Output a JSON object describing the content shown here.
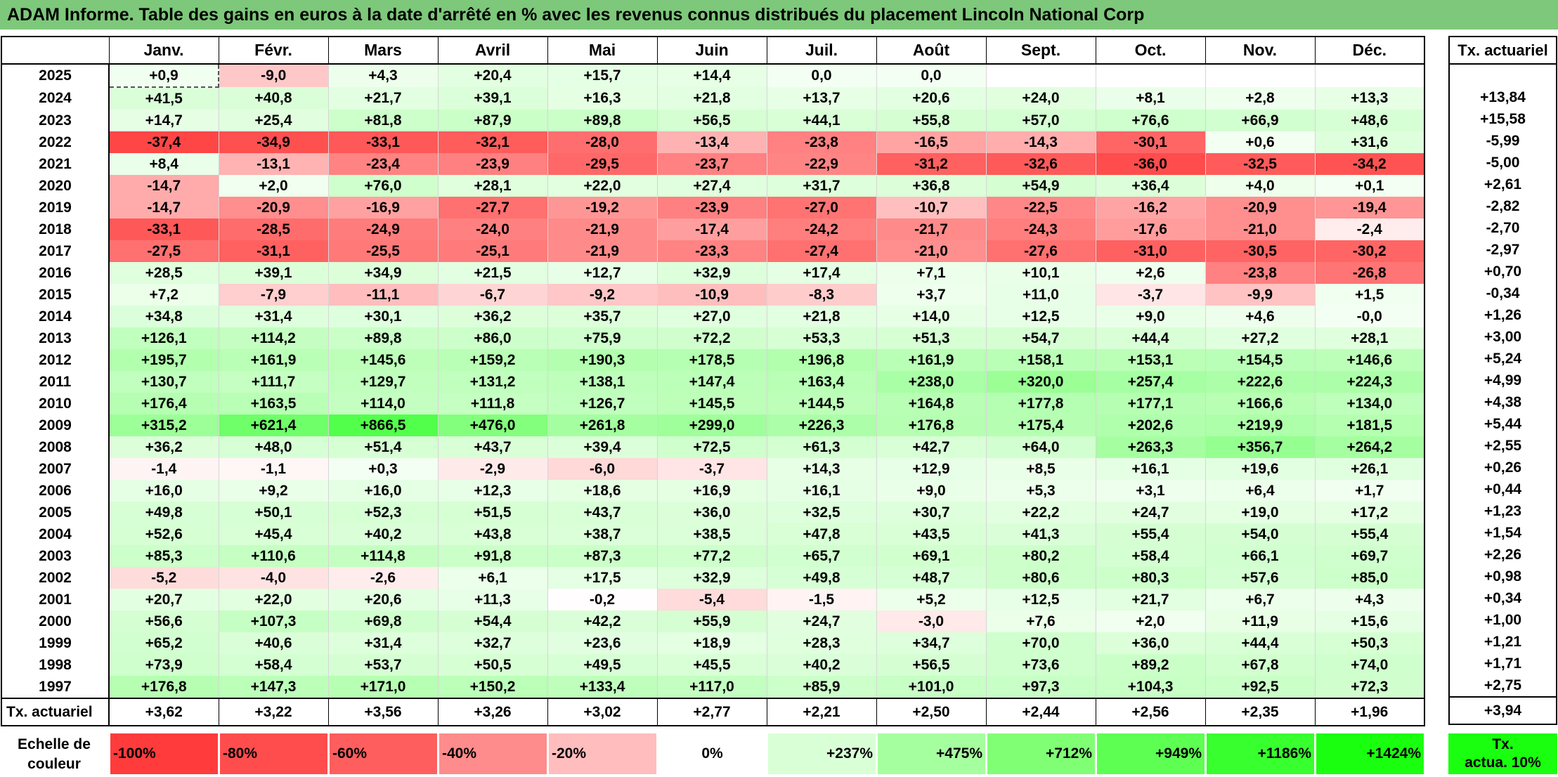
{
  "title": "ADAM Informe. Table des gains en euros à la date d'arrêté en % avec les revenus connus distribués du placement Lincoln National Corp",
  "chart_data": {
    "type": "table",
    "title": "ADAM Informe. Table des gains en euros à la date d'arrêté en % avec les revenus connus distribués du placement Lincoln National Corp",
    "months": [
      "Janv.",
      "Févr.",
      "Mars",
      "Avril",
      "Mai",
      "Juin",
      "Juil.",
      "Août",
      "Sept.",
      "Oct.",
      "Nov.",
      "Déc."
    ],
    "side_header": "Tx. actuariel",
    "rows": [
      {
        "year": "2025",
        "values": [
          "+0,9",
          "-9,0",
          "+4,3",
          "+20,4",
          "+15,7",
          "+14,4",
          "0,0",
          "0,0",
          "",
          "",
          "",
          ""
        ],
        "rate": ""
      },
      {
        "year": "2024",
        "values": [
          "+41,5",
          "+40,8",
          "+21,7",
          "+39,1",
          "+16,3",
          "+21,8",
          "+13,7",
          "+20,6",
          "+24,0",
          "+8,1",
          "+2,8",
          "+13,3"
        ],
        "rate": "+13,84"
      },
      {
        "year": "2023",
        "values": [
          "+14,7",
          "+25,4",
          "+81,8",
          "+87,9",
          "+89,8",
          "+56,5",
          "+44,1",
          "+55,8",
          "+57,0",
          "+76,6",
          "+66,9",
          "+48,6"
        ],
        "rate": "+15,58"
      },
      {
        "year": "2022",
        "values": [
          "-37,4",
          "-34,9",
          "-33,1",
          "-32,1",
          "-28,0",
          "-13,4",
          "-23,8",
          "-16,5",
          "-14,3",
          "-30,1",
          "+0,6",
          "+31,6"
        ],
        "rate": "-5,99"
      },
      {
        "year": "2021",
        "values": [
          "+8,4",
          "-13,1",
          "-23,4",
          "-23,9",
          "-29,5",
          "-23,7",
          "-22,9",
          "-31,2",
          "-32,6",
          "-36,0",
          "-32,5",
          "-34,2"
        ],
        "rate": "-5,00"
      },
      {
        "year": "2020",
        "values": [
          "-14,7",
          "+2,0",
          "+76,0",
          "+28,1",
          "+22,0",
          "+27,4",
          "+31,7",
          "+36,8",
          "+54,9",
          "+36,4",
          "+4,0",
          "+0,1"
        ],
        "rate": "+2,61"
      },
      {
        "year": "2019",
        "values": [
          "-14,7",
          "-20,9",
          "-16,9",
          "-27,7",
          "-19,2",
          "-23,9",
          "-27,0",
          "-10,7",
          "-22,5",
          "-16,2",
          "-20,9",
          "-19,4"
        ],
        "rate": "-2,82"
      },
      {
        "year": "2018",
        "values": [
          "-33,1",
          "-28,5",
          "-24,9",
          "-24,0",
          "-21,9",
          "-17,4",
          "-24,2",
          "-21,7",
          "-24,3",
          "-17,6",
          "-21,0",
          "-2,4"
        ],
        "rate": "-2,70"
      },
      {
        "year": "2017",
        "values": [
          "-27,5",
          "-31,1",
          "-25,5",
          "-25,1",
          "-21,9",
          "-23,3",
          "-27,4",
          "-21,0",
          "-27,6",
          "-31,0",
          "-30,5",
          "-30,2"
        ],
        "rate": "-2,97"
      },
      {
        "year": "2016",
        "values": [
          "+28,5",
          "+39,1",
          "+34,9",
          "+21,5",
          "+12,7",
          "+32,9",
          "+17,4",
          "+7,1",
          "+10,1",
          "+2,6",
          "-23,8",
          "-26,8"
        ],
        "rate": "+0,70"
      },
      {
        "year": "2015",
        "values": [
          "+7,2",
          "-7,9",
          "-11,1",
          "-6,7",
          "-9,2",
          "-10,9",
          "-8,3",
          "+3,7",
          "+11,0",
          "-3,7",
          "-9,9",
          "+1,5"
        ],
        "rate": "-0,34"
      },
      {
        "year": "2014",
        "values": [
          "+34,8",
          "+31,4",
          "+30,1",
          "+36,2",
          "+35,7",
          "+27,0",
          "+21,8",
          "+14,0",
          "+12,5",
          "+9,0",
          "+4,6",
          "-0,0"
        ],
        "rate": "+1,26"
      },
      {
        "year": "2013",
        "values": [
          "+126,1",
          "+114,2",
          "+89,8",
          "+86,0",
          "+75,9",
          "+72,2",
          "+53,3",
          "+51,3",
          "+54,7",
          "+44,4",
          "+27,2",
          "+28,1"
        ],
        "rate": "+3,00"
      },
      {
        "year": "2012",
        "values": [
          "+195,7",
          "+161,9",
          "+145,6",
          "+159,2",
          "+190,3",
          "+178,5",
          "+196,8",
          "+161,9",
          "+158,1",
          "+153,1",
          "+154,5",
          "+146,6"
        ],
        "rate": "+5,24"
      },
      {
        "year": "2011",
        "values": [
          "+130,7",
          "+111,7",
          "+129,7",
          "+131,2",
          "+138,1",
          "+147,4",
          "+163,4",
          "+238,0",
          "+320,0",
          "+257,4",
          "+222,6",
          "+224,3"
        ],
        "rate": "+4,99"
      },
      {
        "year": "2010",
        "values": [
          "+176,4",
          "+163,5",
          "+114,0",
          "+111,8",
          "+126,7",
          "+145,5",
          "+144,5",
          "+164,8",
          "+177,8",
          "+177,1",
          "+166,6",
          "+134,0"
        ],
        "rate": "+4,38"
      },
      {
        "year": "2009",
        "values": [
          "+315,2",
          "+621,4",
          "+866,5",
          "+476,0",
          "+261,8",
          "+299,0",
          "+226,3",
          "+176,8",
          "+175,4",
          "+202,6",
          "+219,9",
          "+181,5"
        ],
        "rate": "+5,44"
      },
      {
        "year": "2008",
        "values": [
          "+36,2",
          "+48,0",
          "+51,4",
          "+43,7",
          "+39,4",
          "+72,5",
          "+61,3",
          "+42,7",
          "+64,0",
          "+263,3",
          "+356,7",
          "+264,2"
        ],
        "rate": "+2,55"
      },
      {
        "year": "2007",
        "values": [
          "-1,4",
          "-1,1",
          "+0,3",
          "-2,9",
          "-6,0",
          "-3,7",
          "+14,3",
          "+12,9",
          "+8,5",
          "+16,1",
          "+19,6",
          "+26,1"
        ],
        "rate": "+0,26"
      },
      {
        "year": "2006",
        "values": [
          "+16,0",
          "+9,2",
          "+16,0",
          "+12,3",
          "+18,6",
          "+16,9",
          "+16,1",
          "+9,0",
          "+5,3",
          "+3,1",
          "+6,4",
          "+1,7"
        ],
        "rate": "+0,44"
      },
      {
        "year": "2005",
        "values": [
          "+49,8",
          "+50,1",
          "+52,3",
          "+51,5",
          "+43,7",
          "+36,0",
          "+32,5",
          "+30,7",
          "+22,2",
          "+24,7",
          "+19,0",
          "+17,2"
        ],
        "rate": "+1,23"
      },
      {
        "year": "2004",
        "values": [
          "+52,6",
          "+45,4",
          "+40,2",
          "+43,8",
          "+38,7",
          "+38,5",
          "+47,8",
          "+43,5",
          "+41,3",
          "+55,4",
          "+54,0",
          "+55,4"
        ],
        "rate": "+1,54"
      },
      {
        "year": "2003",
        "values": [
          "+85,3",
          "+110,6",
          "+114,8",
          "+91,8",
          "+87,3",
          "+77,2",
          "+65,7",
          "+69,1",
          "+80,2",
          "+58,4",
          "+66,1",
          "+69,7"
        ],
        "rate": "+2,26"
      },
      {
        "year": "2002",
        "values": [
          "-5,2",
          "-4,0",
          "-2,6",
          "+6,1",
          "+17,5",
          "+32,9",
          "+49,8",
          "+48,7",
          "+80,6",
          "+80,3",
          "+57,6",
          "+85,0"
        ],
        "rate": "+0,98"
      },
      {
        "year": "2001",
        "values": [
          "+20,7",
          "+22,0",
          "+20,6",
          "+11,3",
          "-0,2",
          "-5,4",
          "-1,5",
          "+5,2",
          "+12,5",
          "+21,7",
          "+6,7",
          "+4,3"
        ],
        "rate": "+0,34"
      },
      {
        "year": "2000",
        "values": [
          "+56,6",
          "+107,3",
          "+69,8",
          "+54,4",
          "+42,2",
          "+55,9",
          "+24,7",
          "-3,0",
          "+7,6",
          "+2,0",
          "+11,9",
          "+15,6"
        ],
        "rate": "+1,00"
      },
      {
        "year": "1999",
        "values": [
          "+65,2",
          "+40,6",
          "+31,4",
          "+32,7",
          "+23,6",
          "+18,9",
          "+28,3",
          "+34,7",
          "+70,0",
          "+36,0",
          "+44,4",
          "+50,3"
        ],
        "rate": "+1,21"
      },
      {
        "year": "1998",
        "values": [
          "+73,9",
          "+58,4",
          "+53,7",
          "+50,5",
          "+49,5",
          "+45,5",
          "+40,2",
          "+56,5",
          "+73,6",
          "+89,2",
          "+67,8",
          "+74,0"
        ],
        "rate": "+1,71"
      },
      {
        "year": "1997",
        "values": [
          "+176,8",
          "+147,3",
          "+171,0",
          "+150,2",
          "+133,4",
          "+117,0",
          "+85,9",
          "+101,0",
          "+97,3",
          "+104,3",
          "+92,5",
          "+72,3"
        ],
        "rate": "+2,75"
      }
    ],
    "footer": {
      "label": "Tx. actuariel",
      "values": [
        "+3,62",
        "+3,22",
        "+3,56",
        "+3,26",
        "+3,02",
        "+2,77",
        "+2,21",
        "+2,50",
        "+2,44",
        "+2,56",
        "+2,35",
        "+1,96"
      ],
      "overall": "+3,94"
    },
    "color_scale": {
      "label_line1": "Echelle de",
      "label_line2": "couleur",
      "steps": [
        {
          "label": "-100%",
          "value": -100,
          "color": "#ff3b3b"
        },
        {
          "label": "-80%",
          "value": -80,
          "color": "#ff4d4d"
        },
        {
          "label": "-60%",
          "value": -60,
          "color": "#ff5e5e"
        },
        {
          "label": "-40%",
          "value": -40,
          "color": "#ff8c8c"
        },
        {
          "label": "-20%",
          "value": -20,
          "color": "#ffbdbd"
        },
        {
          "label": "0%",
          "value": 0,
          "color": "#ffffff"
        },
        {
          "label": "+237%",
          "value": 237,
          "color": "#d9ffd6"
        },
        {
          "label": "+475%",
          "value": 475,
          "color": "#a6ff9e"
        },
        {
          "label": "+712%",
          "value": 712,
          "color": "#80ff75"
        },
        {
          "label": "+949%",
          "value": 949,
          "color": "#5cff52"
        },
        {
          "label": "+1186%",
          "value": 1186,
          "color": "#38ff2e"
        },
        {
          "label": "+1424%",
          "value": 1424,
          "color": "#1aff10"
        }
      ],
      "side_line1": "Tx.",
      "side_line2": "actua. 10%",
      "side_color": "#1aff10"
    },
    "colors": {
      "title_bar": "#7dc87a",
      "negative_max": "#ff3b3b",
      "positive_max": "#1aff10",
      "neutral": "#ffffff"
    }
  }
}
